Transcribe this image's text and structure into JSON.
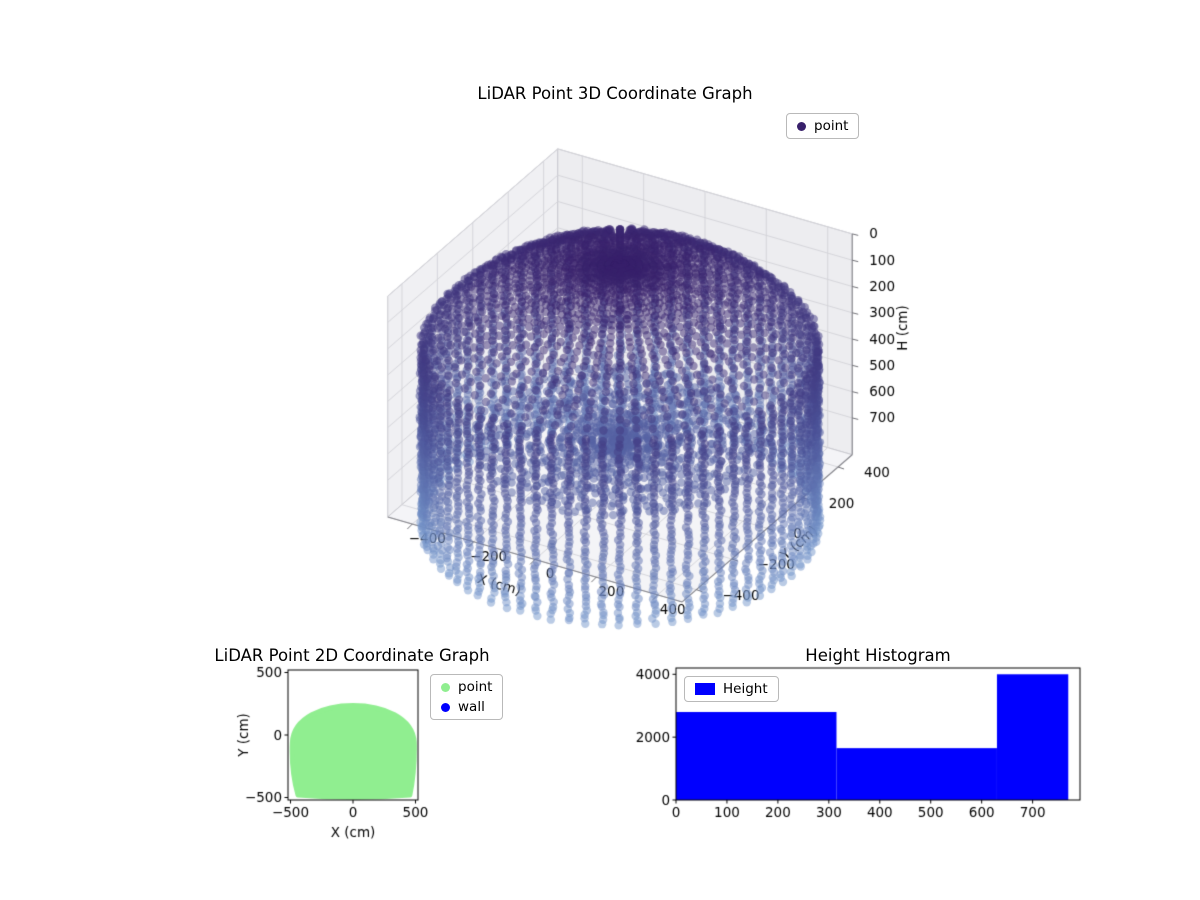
{
  "figure": {
    "background": "#ffffff"
  },
  "chart_data": [
    {
      "id": "lidar-3d",
      "type": "scatter3d",
      "title": "LiDAR Point 3D Coordinate Graph",
      "xlabel": "X (cm)",
      "ylabel": "Y (cm)",
      "zlabel": "H (cm)",
      "xticks": [
        -400,
        -200,
        0,
        200,
        400
      ],
      "yticks": [
        -400,
        -200,
        0,
        200,
        400
      ],
      "zticks": [
        0,
        100,
        200,
        300,
        400,
        500,
        600,
        700
      ],
      "xlim": [
        -480,
        480
      ],
      "ylim": [
        -480,
        480
      ],
      "zlim": [
        0,
        840
      ],
      "zaxis_inverted": true,
      "view": {
        "elev": 30,
        "azim": -60
      },
      "legend": [
        {
          "label": "point",
          "color": "#38206b"
        }
      ],
      "colormap": {
        "by": "height",
        "stops": [
          [
            56,
            32,
            107
          ],
          [
            74,
            80,
            150
          ],
          [
            118,
            152,
            205
          ]
        ]
      },
      "point_cloud": {
        "shape": "cylindrical room scan",
        "wall_radius_cm": 560,
        "wall_azimuth_step_deg": 5,
        "wall_height_span_cm": [
          300,
          1000
        ],
        "ceiling_dome_sphere_radius_cm": 680,
        "ceiling_apex_h_cm": 0,
        "floor_disc_h_cm": 670,
        "floor_disc_radius_cm": 430,
        "scatter_alpha": 0.5,
        "marker_px": 4.2
      }
    },
    {
      "id": "lidar-2d",
      "type": "scatter",
      "title": "LiDAR Point 2D Coordinate Graph",
      "xlabel": "X (cm)",
      "ylabel": "Y (cm)",
      "xticks": [
        -500,
        0,
        500
      ],
      "yticks": [
        -500,
        0,
        500
      ],
      "xlim": [
        -520,
        520
      ],
      "ylim": [
        -520,
        520
      ],
      "legend": [
        {
          "label": "point",
          "color": "#90ee90"
        },
        {
          "label": "wall",
          "color": "#0000ff"
        }
      ],
      "region": {
        "color": "#90ee90",
        "outline_cm": {
          "bottom_left": [
            -440,
            -480
          ],
          "left": [
            -485,
            -60
          ],
          "apex": [
            0,
            245
          ],
          "right": [
            490,
            -60
          ],
          "bottom_right": [
            455,
            -480
          ]
        }
      }
    },
    {
      "id": "height-histogram",
      "type": "bar",
      "title": "Height Histogram",
      "legend": [
        {
          "label": "Height",
          "color": "#0000ff"
        }
      ],
      "bin_edges": [
        0,
        315,
        630,
        770
      ],
      "values": [
        2800,
        1650,
        4000
      ],
      "xticks": [
        0,
        100,
        200,
        300,
        400,
        500,
        600,
        700
      ],
      "yticks": [
        0,
        2000,
        4000
      ],
      "xlim": [
        0,
        793
      ],
      "ylim": [
        0,
        4200
      ],
      "bar_color": "#0000ff"
    }
  ]
}
